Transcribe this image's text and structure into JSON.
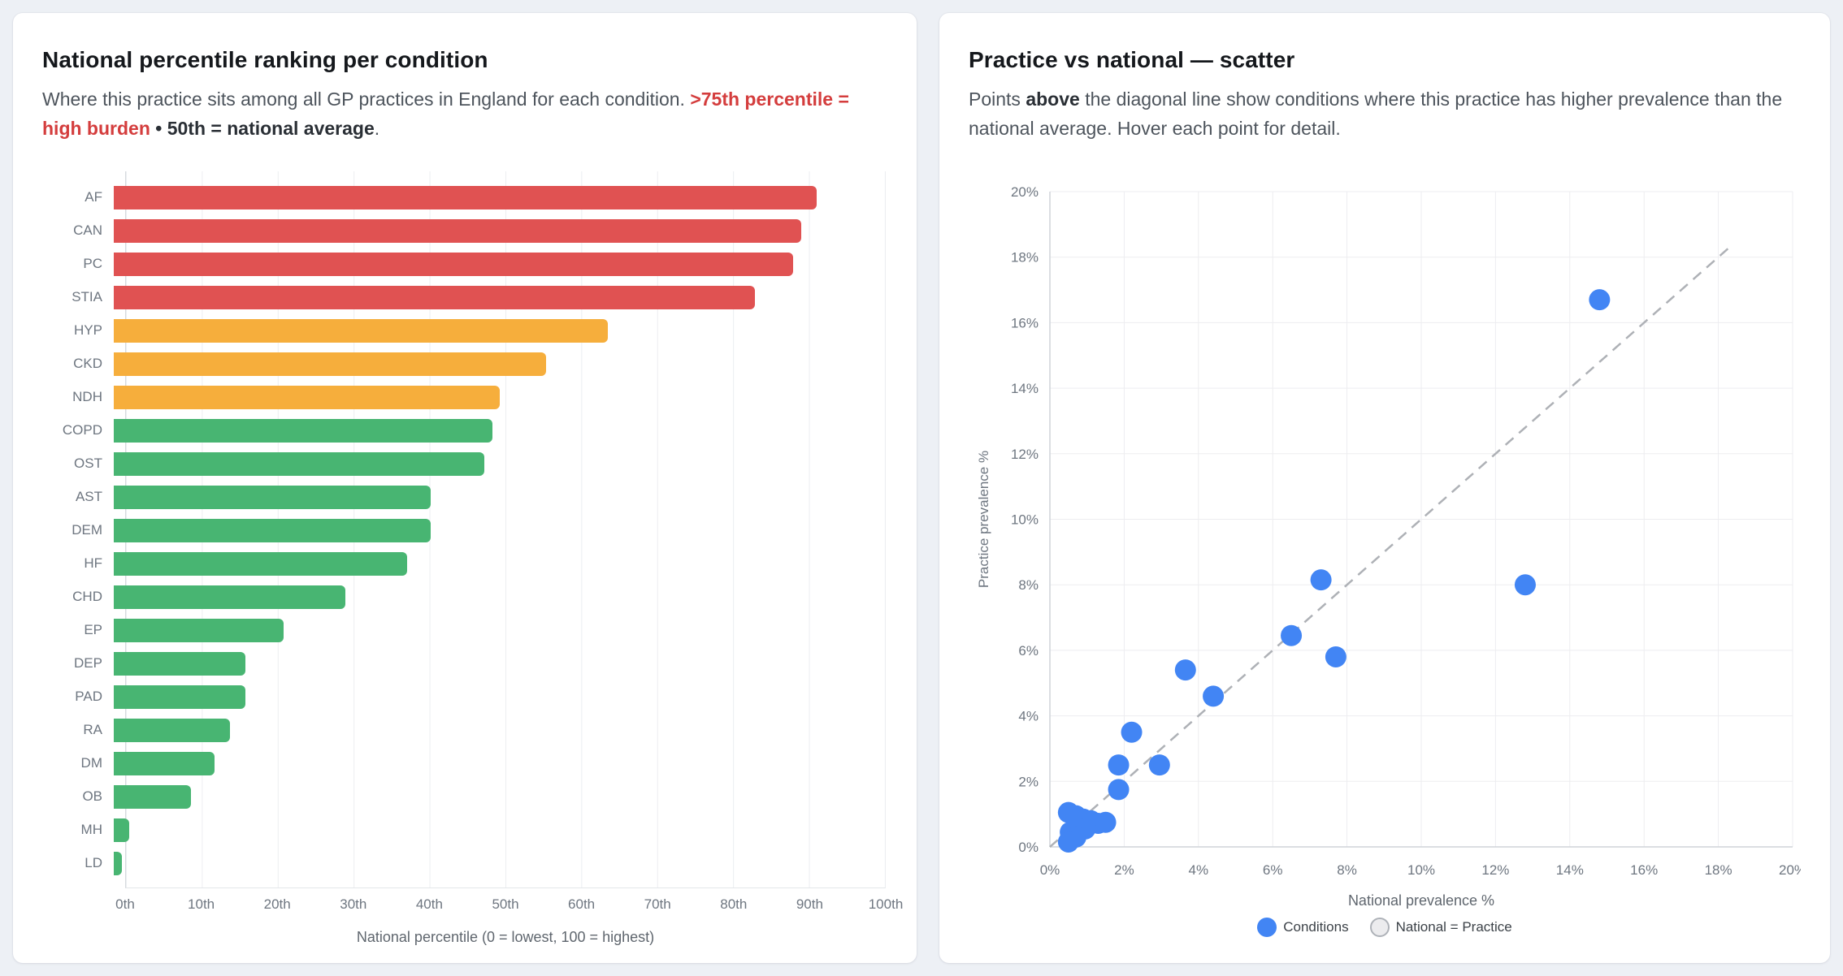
{
  "left_panel": {
    "title": "National percentile ranking per condition",
    "subtitle_part1": "Where this practice sits among all GP practices in England for each condition. ",
    "subtitle_highlight": ">75th percentile = high burden",
    "subtitle_sep": " • ",
    "subtitle_bold": "50th = national average",
    "subtitle_end": ".",
    "highlight_color": "#d43d3d"
  },
  "right_panel": {
    "title": "Practice vs national — scatter",
    "subtitle_part1": "Points ",
    "subtitle_bold": "above",
    "subtitle_part2": " the diagonal line show conditions where this practice has higher prevalence than the national average. Hover each point for detail.",
    "legend": {
      "conditions_label": "Conditions",
      "national_label": "National = Practice",
      "conditions_color": "#4285f4",
      "national_fill": "#ececee",
      "national_border": "#aeb2b8"
    }
  },
  "chart_data": [
    {
      "type": "bar",
      "orientation": "horizontal",
      "title": "National percentile ranking per condition",
      "categories": [
        "AF",
        "CAN",
        "PC",
        "STIA",
        "HYP",
        "CKD",
        "NDH",
        "COPD",
        "OST",
        "AST",
        "DEM",
        "HF",
        "CHD",
        "EP",
        "DEP",
        "PAD",
        "RA",
        "DM",
        "OB",
        "MH",
        "LD"
      ],
      "values": [
        91,
        89,
        88,
        83,
        64,
        56,
        50,
        49,
        48,
        41,
        41,
        38,
        30,
        22,
        17,
        17,
        15,
        13,
        10,
        2,
        1
      ],
      "xlim": [
        0,
        100
      ],
      "x_ticks": [
        "0th",
        "10th",
        "20th",
        "30th",
        "40th",
        "50th",
        "60th",
        "70th",
        "80th",
        "90th",
        "100th"
      ],
      "xlabel": "National percentile (0 = lowest, 100 = highest)",
      "grid": "vertical",
      "color_rule": {
        "red_above": 75,
        "orange_from": 50
      },
      "colors": {
        "red": "#e05252",
        "orange": "#f6ae3c",
        "green": "#48b572"
      }
    },
    {
      "type": "scatter",
      "title": "Practice vs national — scatter",
      "xlabel": "National prevalence %",
      "ylabel": "Practice prevalence %",
      "xlim": [
        0,
        20
      ],
      "ylim": [
        0,
        20
      ],
      "x_ticks": [
        "0%",
        "2%",
        "4%",
        "6%",
        "8%",
        "10%",
        "12%",
        "14%",
        "16%",
        "18%",
        "20%"
      ],
      "y_ticks": [
        "0%",
        "2%",
        "4%",
        "6%",
        "8%",
        "10%",
        "12%",
        "14%",
        "16%",
        "18%",
        "20%"
      ],
      "grid": "both",
      "diagonal": {
        "from": [
          0,
          0
        ],
        "to": [
          18.4,
          18.4
        ],
        "style": "dashed",
        "color": "#aeb1b6"
      },
      "point_color": "#4285f4",
      "points": [
        {
          "x": 14.8,
          "y": 16.7
        },
        {
          "x": 12.8,
          "y": 8.0
        },
        {
          "x": 7.3,
          "y": 8.15
        },
        {
          "x": 7.7,
          "y": 5.8
        },
        {
          "x": 6.5,
          "y": 6.45
        },
        {
          "x": 3.65,
          "y": 5.4
        },
        {
          "x": 4.4,
          "y": 4.6
        },
        {
          "x": 2.2,
          "y": 3.5
        },
        {
          "x": 1.85,
          "y": 2.5
        },
        {
          "x": 2.95,
          "y": 2.5
        },
        {
          "x": 1.85,
          "y": 1.75
        },
        {
          "x": 0.5,
          "y": 1.05
        },
        {
          "x": 0.7,
          "y": 0.95
        },
        {
          "x": 0.9,
          "y": 0.85
        },
        {
          "x": 1.1,
          "y": 0.8
        },
        {
          "x": 1.3,
          "y": 0.72
        },
        {
          "x": 1.5,
          "y": 0.75
        },
        {
          "x": 0.55,
          "y": 0.45
        },
        {
          "x": 0.95,
          "y": 0.55
        },
        {
          "x": 0.7,
          "y": 0.3
        },
        {
          "x": 0.5,
          "y": 0.15
        }
      ]
    }
  ]
}
